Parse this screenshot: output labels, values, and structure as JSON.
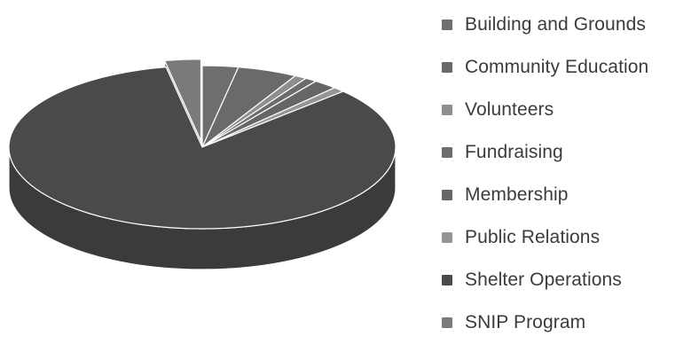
{
  "chart_data": {
    "type": "pie",
    "title": "",
    "legend_position": "right",
    "categories": [
      "Building and Grounds",
      "Community Education",
      "Volunteers",
      "Fundraising",
      "Membership",
      "Public Relations",
      "Shelter Operations",
      "SNIP Program"
    ],
    "values": [
      3,
      5,
      1,
      1,
      2,
      1,
      84,
      3
    ],
    "colors": [
      "#6e6e6e",
      "#6a6a6a",
      "#8e8e8e",
      "#6c6c6c",
      "#666666",
      "#959595",
      "#4a4a4a",
      "#7a7a7a"
    ],
    "exploded": [
      false,
      false,
      false,
      false,
      false,
      false,
      false,
      true
    ],
    "three_d": true
  }
}
